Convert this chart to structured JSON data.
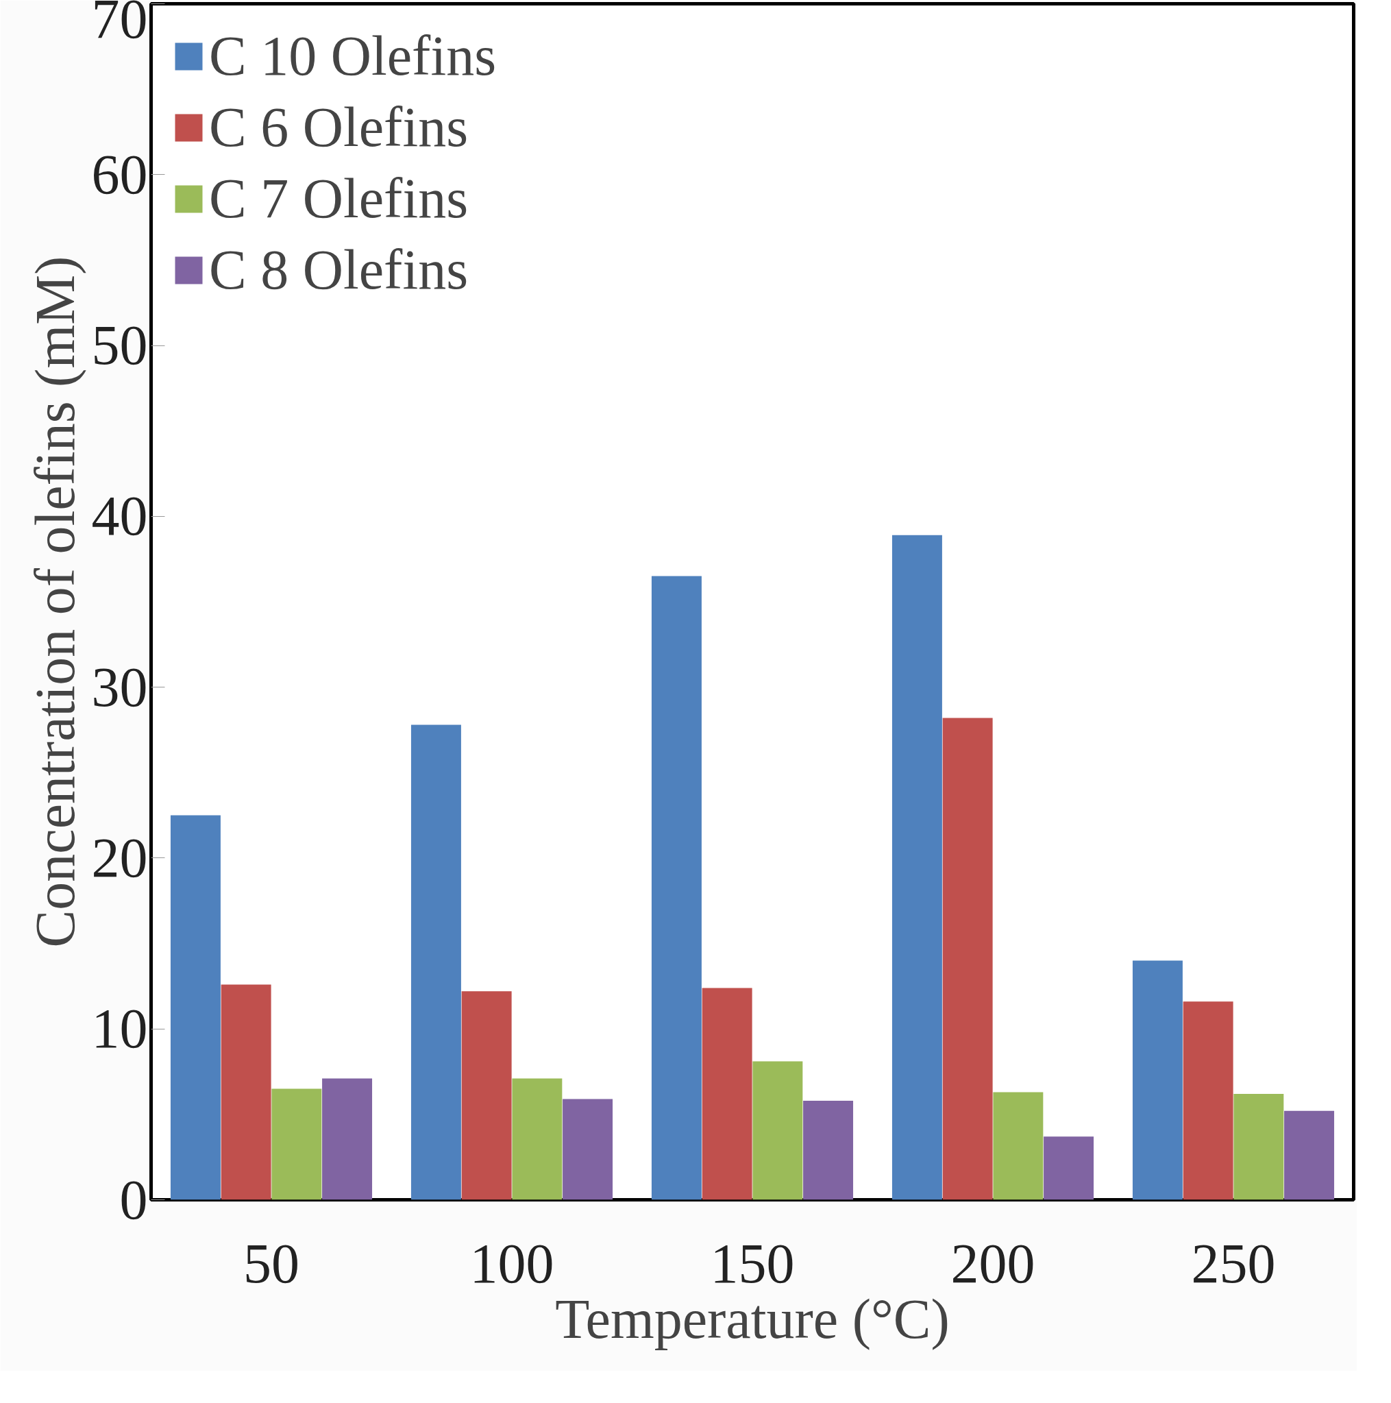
{
  "chart_data": {
    "type": "bar",
    "xlabel": "Temperature (°C)",
    "ylabel": "Concentration of olefins (mM)",
    "categories": [
      "50",
      "100",
      "150",
      "200",
      "250"
    ],
    "series": [
      {
        "name": "C 10 Olefins",
        "color": "#4f81bd",
        "values": [
          22.5,
          27.8,
          36.5,
          38.9,
          14.0
        ]
      },
      {
        "name": "C 6 Olefins",
        "color": "#c0504d",
        "values": [
          12.6,
          12.2,
          12.4,
          28.2,
          11.6
        ]
      },
      {
        "name": "C 7 Olefins",
        "color": "#9bbb59",
        "values": [
          6.5,
          7.1,
          8.1,
          6.3,
          6.2
        ]
      },
      {
        "name": "C 8 Olefins",
        "color": "#8064a2",
        "values": [
          7.1,
          5.9,
          5.8,
          3.7,
          5.2
        ]
      }
    ],
    "ylim": [
      0,
      70
    ],
    "yticks": [
      0,
      10,
      20,
      30,
      40,
      50,
      60,
      70
    ],
    "grid": false,
    "legend": "top left"
  }
}
